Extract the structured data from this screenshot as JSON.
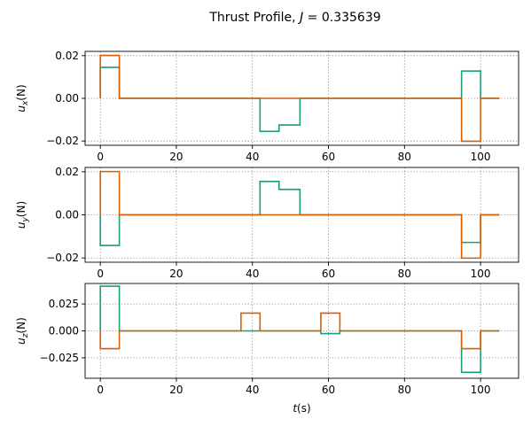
{
  "chart_data": [
    {
      "type": "line",
      "step": true,
      "title": "Thrust Profile, J = 0.335639",
      "ylabel": "u_x(N)",
      "xlabel": "",
      "xlim": [
        -4,
        110
      ],
      "ylim": [
        -0.022,
        0.022
      ],
      "xticks": [
        0,
        20,
        40,
        60,
        80,
        100
      ],
      "yticks": [
        -0.02,
        0.0,
        0.02
      ],
      "ytick_labels": [
        "−0.02",
        "0.00",
        "0.02"
      ],
      "grid": true,
      "series": [
        {
          "color": "#1b9e77",
          "x": [
            0,
            0,
            5,
            5,
            42,
            42,
            47,
            47,
            52.5,
            52.5,
            95,
            95,
            100,
            100,
            105
          ],
          "y": [
            0,
            0.0145,
            0.0145,
            0,
            0,
            -0.0155,
            -0.0155,
            -0.0125,
            -0.0125,
            0,
            0,
            0.0128,
            0.0128,
            0,
            0
          ]
        },
        {
          "color": "#d95f02",
          "x": [
            0,
            0,
            5,
            5,
            95,
            95,
            100,
            100,
            105
          ],
          "y": [
            0,
            0.0201,
            0.0201,
            0,
            0,
            -0.0201,
            -0.0201,
            0,
            0
          ]
        }
      ]
    },
    {
      "type": "line",
      "step": true,
      "ylabel": "u_y(N)",
      "xlabel": "",
      "xlim": [
        -4,
        110
      ],
      "ylim": [
        -0.022,
        0.022
      ],
      "xticks": [
        0,
        20,
        40,
        60,
        80,
        100
      ],
      "yticks": [
        -0.02,
        0.0,
        0.02
      ],
      "ytick_labels": [
        "−0.02",
        "0.00",
        "0.02"
      ],
      "grid": true,
      "series": [
        {
          "color": "#1b9e77",
          "x": [
            0,
            0,
            5,
            5,
            42,
            42,
            47,
            47,
            52.5,
            52.5,
            95,
            95,
            100,
            100,
            105
          ],
          "y": [
            0,
            -0.0142,
            -0.0142,
            0,
            0,
            0.0155,
            0.0155,
            0.0118,
            0.0118,
            0,
            0,
            -0.0128,
            -0.0128,
            0,
            0
          ]
        },
        {
          "color": "#d95f02",
          "x": [
            0,
            0,
            5,
            5,
            95,
            95,
            100,
            100,
            105
          ],
          "y": [
            0,
            0.0201,
            0.0201,
            0,
            0,
            -0.0201,
            -0.0201,
            0,
            0
          ]
        }
      ]
    },
    {
      "type": "line",
      "step": true,
      "ylabel": "u_z(N)",
      "xlabel": "t(s)",
      "xlim": [
        -4,
        110
      ],
      "ylim": [
        -0.044,
        0.044
      ],
      "xticks": [
        0,
        20,
        40,
        60,
        80,
        100
      ],
      "yticks": [
        -0.025,
        0.0,
        0.025
      ],
      "ytick_labels": [
        "−0.025",
        "0.000",
        "0.025"
      ],
      "grid": true,
      "series": [
        {
          "color": "#1b9e77",
          "x": [
            0,
            0,
            5,
            5,
            58,
            58,
            63,
            63,
            95,
            95,
            100,
            100,
            105
          ],
          "y": [
            0,
            0.0415,
            0.0415,
            0,
            0,
            -0.0025,
            -0.0025,
            0,
            0,
            -0.0385,
            -0.0385,
            0,
            0
          ]
        },
        {
          "color": "#d95f02",
          "x": [
            0,
            0,
            5,
            5,
            37,
            37,
            42,
            42,
            58,
            58,
            63,
            63,
            95,
            95,
            100,
            100,
            105
          ],
          "y": [
            0,
            -0.0165,
            -0.0165,
            0,
            0,
            0.0165,
            0.0165,
            0,
            0,
            0.0165,
            0.0165,
            0,
            0,
            -0.0165,
            -0.0165,
            0,
            0
          ]
        }
      ]
    }
  ]
}
